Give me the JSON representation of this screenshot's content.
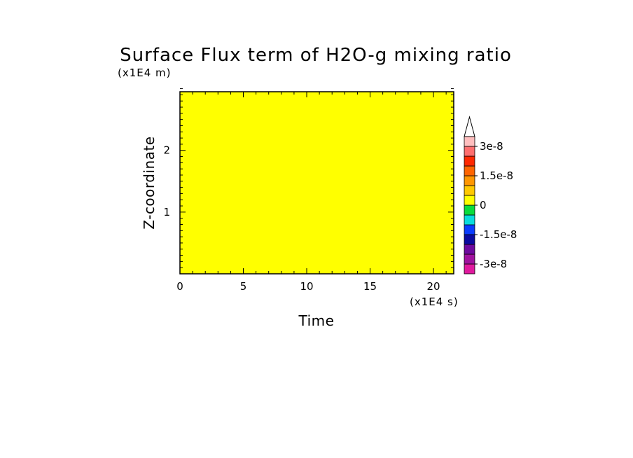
{
  "chart_data": {
    "type": "heatmap",
    "title": "Surface Flux term of H2O-g mixing ratio",
    "xlabel": "Time",
    "ylabel": "Z-coordinate",
    "x_unit_label": "(x1E4 s)",
    "y_unit_label": "(x1E4 m)",
    "xlim": [
      0,
      21.6
    ],
    "ylim": [
      0,
      2.95
    ],
    "x_major_ticks": [
      0,
      5,
      10,
      15,
      20
    ],
    "x_tick_labels": [
      "0",
      "5",
      "10",
      "15",
      "20"
    ],
    "x_minor_step": 1,
    "y_major_ticks": [
      1,
      2
    ],
    "y_tick_labels": [
      "1",
      "2"
    ],
    "y_minor_step": 0.1,
    "field_value": 0,
    "field_color": "#ffff00",
    "colorbar": {
      "levels": [
        -3.5e-08,
        -3e-08,
        -2.5e-08,
        -2e-08,
        -1.5e-08,
        -1e-08,
        -5e-09,
        0,
        5e-09,
        1e-08,
        1.5e-08,
        2e-08,
        2.5e-08,
        3e-08,
        3.5e-08
      ],
      "colors": [
        "#e0199e",
        "#a0129e",
        "#6e0a9e",
        "#0a0aa0",
        "#0a3cff",
        "#0adcdc",
        "#0adc3c",
        "#ffff00",
        "#ffc800",
        "#ff9600",
        "#ff6400",
        "#ff2800",
        "#ff6e6e",
        "#ffbebe"
      ],
      "extend_color": "#ffffff",
      "tick_values": [
        3e-08,
        1.5e-08,
        0,
        -1.5e-08,
        -3e-08
      ],
      "tick_labels": [
        "3e-8",
        "1.5e-8",
        "0",
        "-1.5e-8",
        "-3e-8"
      ]
    }
  }
}
